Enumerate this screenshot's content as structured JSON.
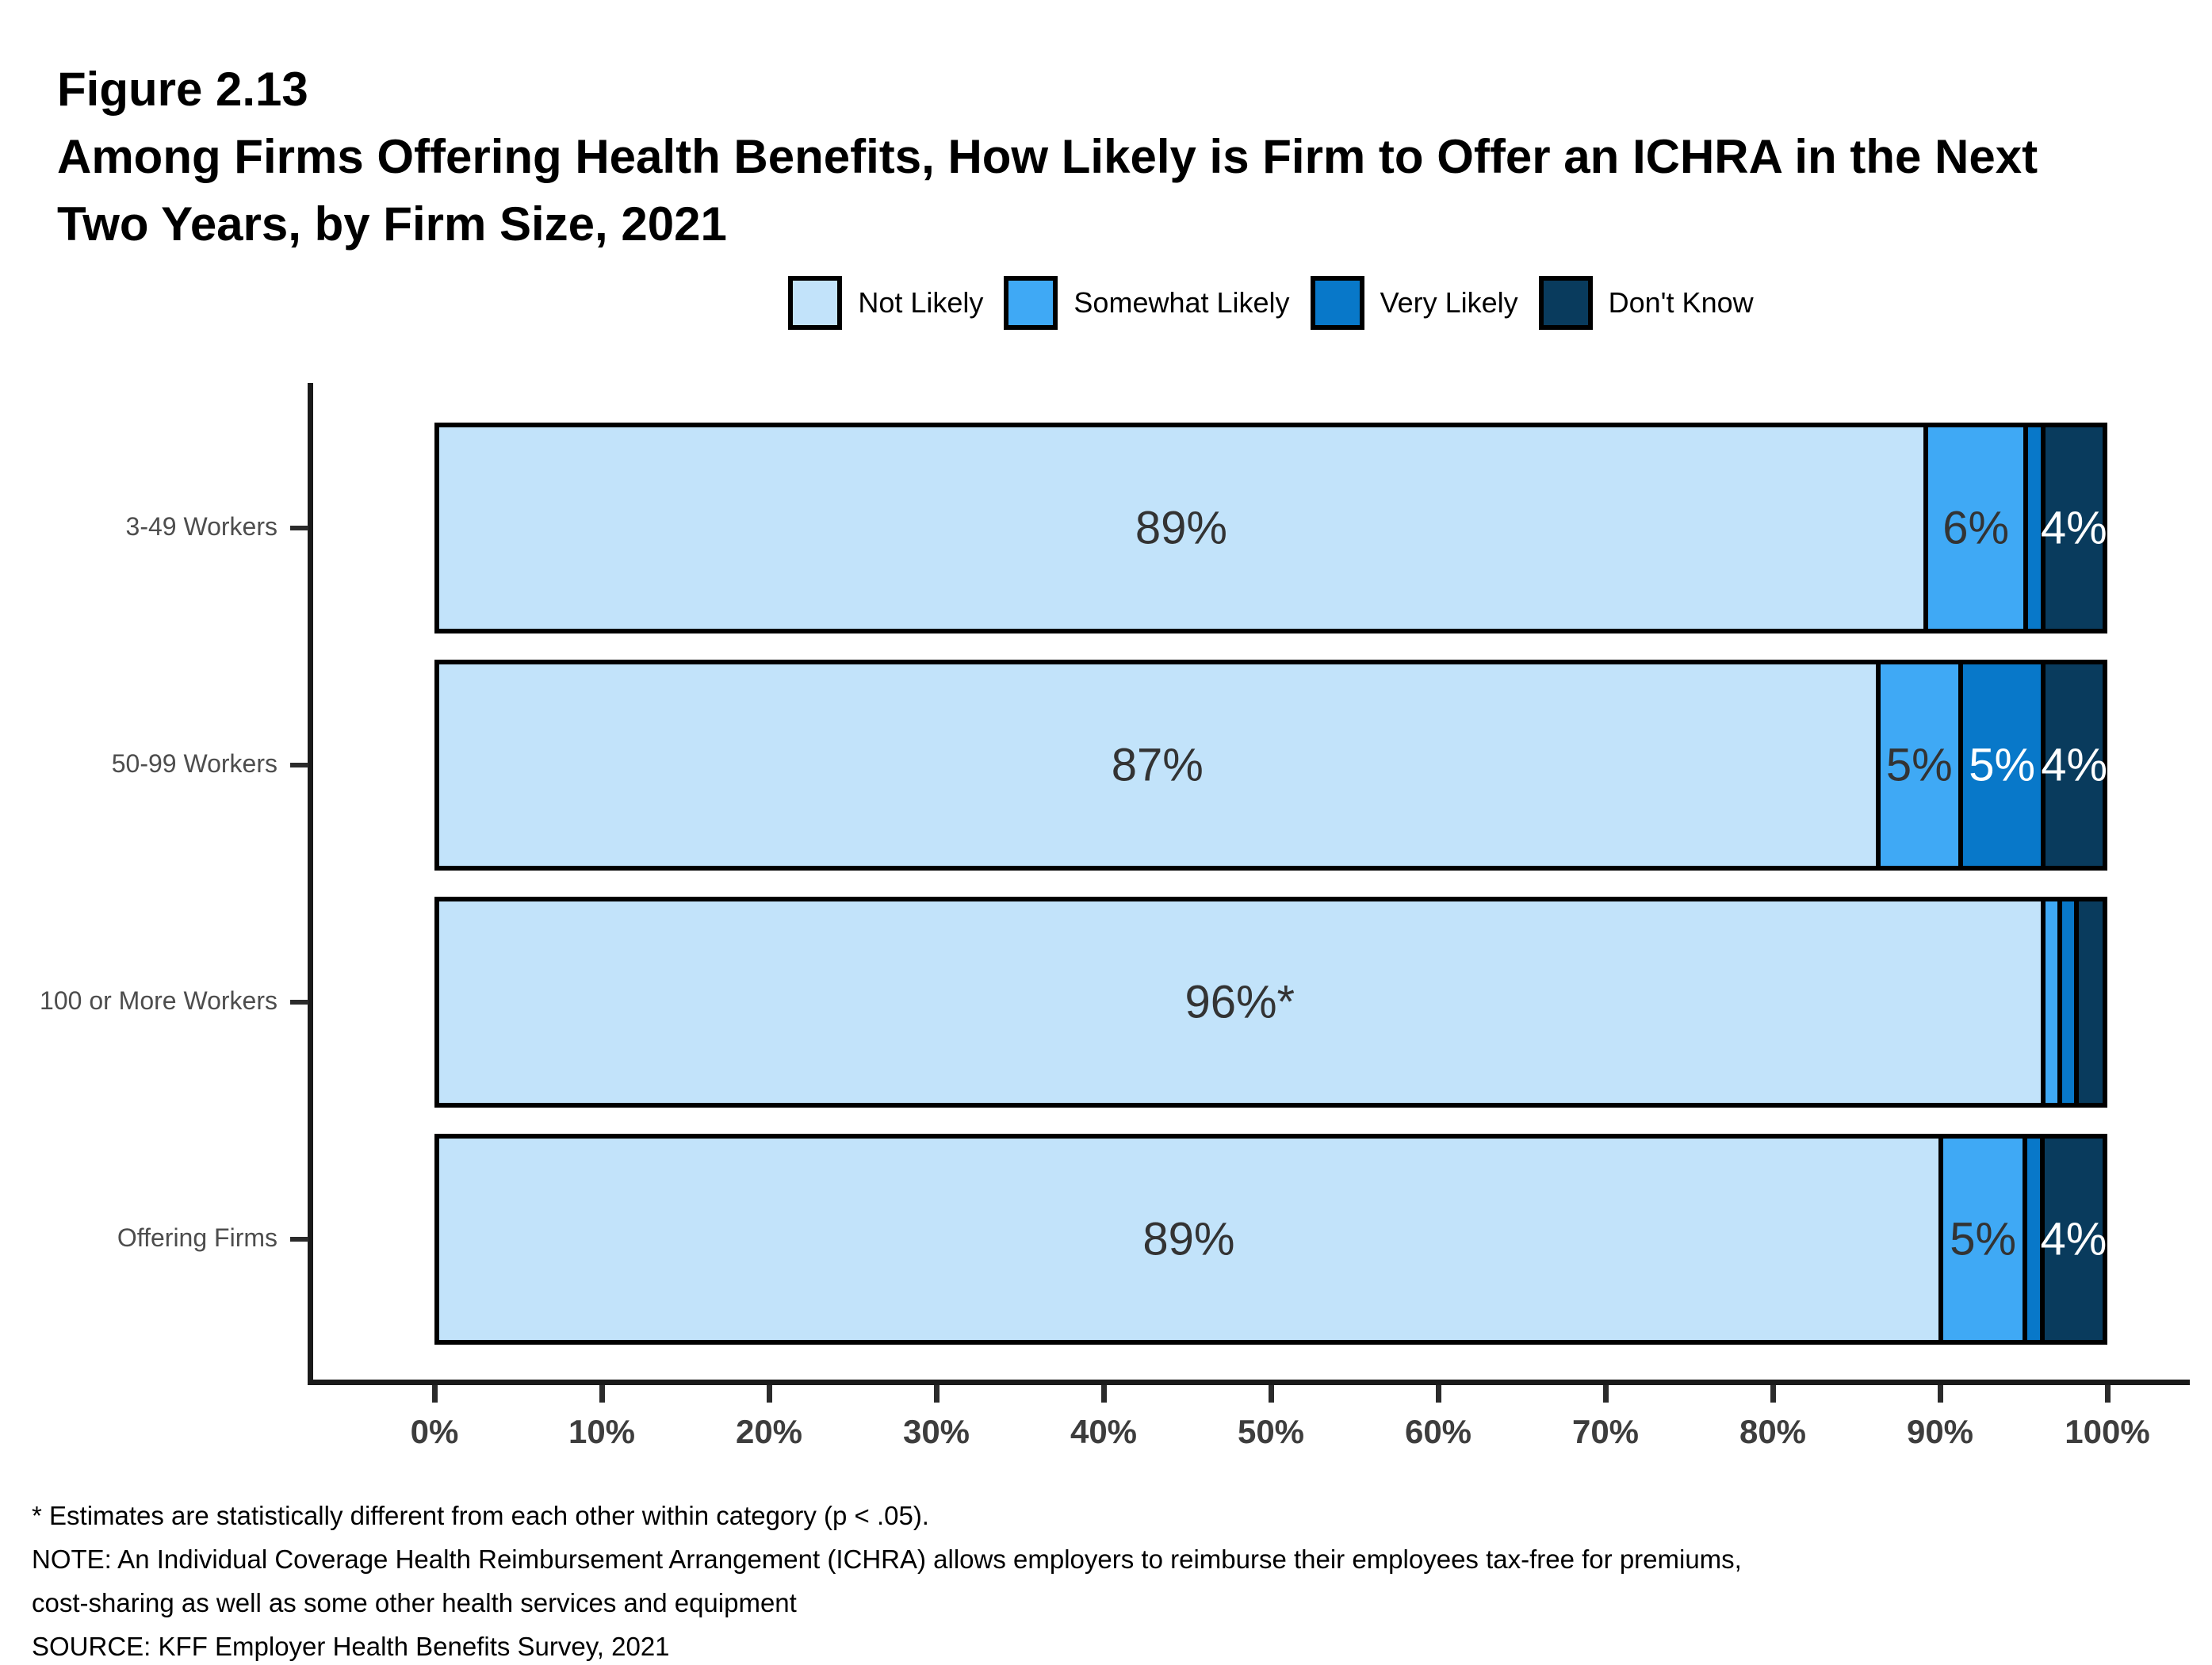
{
  "header": {
    "figure_label": "Figure 2.13",
    "title_line1": "Among Firms Offering Health Benefits, How Likely is Firm to Offer an ICHRA in the Next",
    "title_line2": "Two Years, by Firm Size, 2021"
  },
  "chart_data": {
    "type": "bar",
    "orientation": "horizontal",
    "stacked": true,
    "title": "Among Firms Offering Health Benefits, How Likely is Firm to Offer an ICHRA in the Next Two Years, by Firm Size, 2021",
    "categories": [
      "3-49 Workers",
      "50-99 Workers",
      "100 or More Workers",
      "Offering Firms"
    ],
    "series": [
      {
        "name": "Not Likely",
        "color": "#C2E3FA",
        "label_text_color": "#333333",
        "values": [
          89,
          87,
          96,
          89
        ]
      },
      {
        "name": "Somewhat Likely",
        "color": "#3FA9F5",
        "label_text_color": "#333333",
        "values": [
          6,
          5,
          1,
          5
        ]
      },
      {
        "name": "Very Likely",
        "color": "#0878C9",
        "label_text_color": "#FFFFFF",
        "values": [
          1,
          5,
          1,
          1
        ]
      },
      {
        "name": "Don't Know",
        "color": "#093B5D",
        "label_text_color": "#FFFFFF",
        "values": [
          4,
          4,
          2,
          4
        ]
      }
    ],
    "bar_labels": [
      [
        "89%",
        "6%",
        "",
        "4%"
      ],
      [
        "87%",
        "5%",
        "5%",
        "4%"
      ],
      [
        "96%*",
        "",
        "",
        ""
      ],
      [
        "89%",
        "5%",
        "",
        "4%"
      ]
    ],
    "x_ticks": [
      "0%",
      "10%",
      "20%",
      "30%",
      "40%",
      "50%",
      "60%",
      "70%",
      "80%",
      "90%",
      "100%"
    ],
    "xlim": [
      0,
      100
    ],
    "grid": false,
    "legend_position": "top"
  },
  "footnotes": [
    "* Estimates are statistically different from each other within category (p < .05).",
    "NOTE: An Individual Coverage Health Reimbursement Arrangement (ICHRA) allows employers to reimburse their employees tax-free for premiums,",
    "cost-sharing as well as some other health services and equipment",
    "SOURCE: KFF Employer Health Benefits Survey, 2021"
  ]
}
